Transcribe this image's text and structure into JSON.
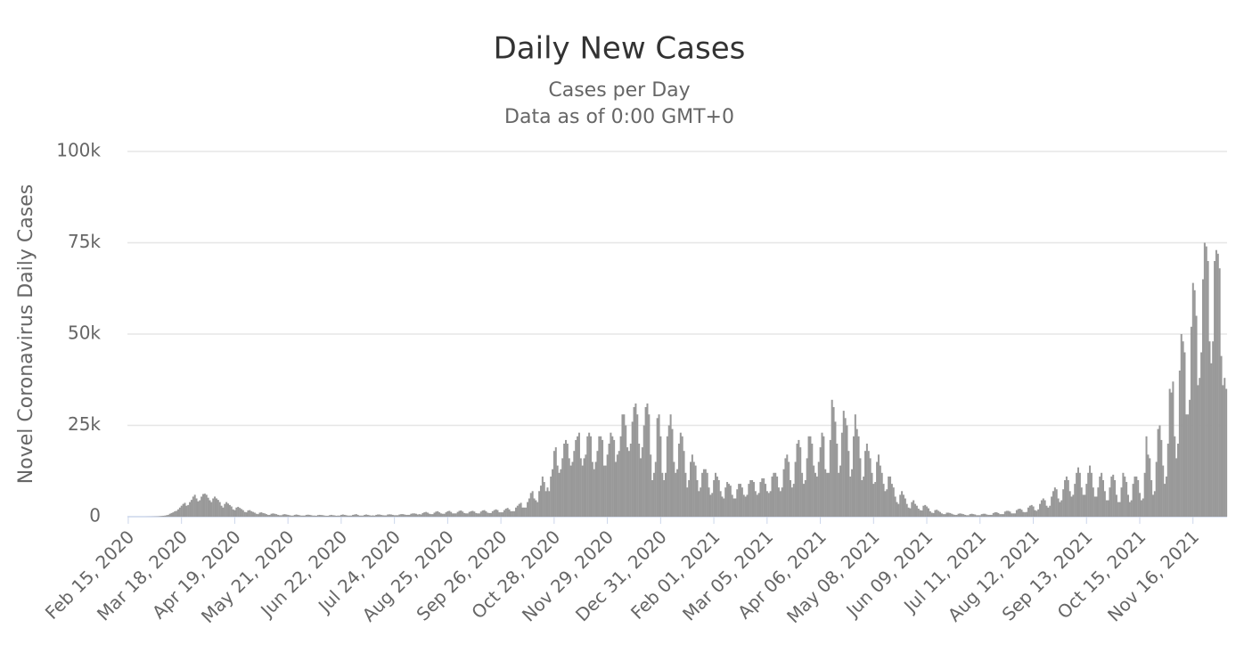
{
  "chart_data": {
    "type": "bar",
    "title": "Daily New Cases",
    "subtitle": [
      "Cases per Day",
      "Data as of 0:00 GMT+0"
    ],
    "y_label": "Novel Coronavirus Daily Cases",
    "color": "#999999",
    "grid": true,
    "ylim": [
      0,
      100000
    ],
    "yticks": [
      0,
      {
        "value": 25000,
        "label": "25k"
      },
      {
        "value": 50000,
        "label": "50k"
      },
      {
        "value": 75000,
        "label": "75k"
      },
      {
        "value": 100000,
        "label": "100k"
      }
    ],
    "categories": [
      "Feb 15, 2020",
      null,
      null,
      null,
      null,
      null,
      null,
      null,
      null,
      null,
      null,
      null,
      null,
      null,
      null,
      null,
      null,
      null,
      null,
      null,
      null,
      null,
      null,
      null,
      null,
      null,
      null,
      null,
      null,
      null,
      null,
      null,
      "Mar 18, 2020",
      null,
      null,
      null,
      null,
      null,
      null,
      null,
      null,
      null,
      null,
      null,
      null,
      null,
      null,
      null,
      null,
      null,
      null,
      null,
      null,
      null,
      null,
      null,
      null,
      null,
      null,
      null,
      null,
      null,
      null,
      null,
      "Apr 19, 2020",
      null,
      null,
      null,
      null,
      null,
      null,
      null,
      null,
      null,
      null,
      null,
      null,
      null,
      null,
      null,
      null,
      null,
      null,
      null,
      null,
      null,
      null,
      null,
      null,
      null,
      null,
      null,
      null,
      null,
      null,
      null,
      "May 21, 2020",
      null,
      null,
      null,
      null,
      null,
      null,
      null,
      null,
      null,
      null,
      null,
      null,
      null,
      null,
      null,
      null,
      null,
      null,
      null,
      null,
      null,
      null,
      null,
      null,
      null,
      null,
      null,
      null,
      null,
      null,
      null,
      "Jun 22, 2020",
      null,
      null,
      null,
      null,
      null,
      null,
      null,
      null,
      null,
      null,
      null,
      null,
      null,
      null,
      null,
      null,
      null,
      null,
      null,
      null,
      null,
      null,
      null,
      null,
      null,
      null,
      null,
      null,
      null,
      null,
      null,
      "Jul 24, 2020",
      null,
      null,
      null,
      null,
      null,
      null,
      null,
      null,
      null,
      null,
      null,
      null,
      null,
      null,
      null,
      null,
      null,
      null,
      null,
      null,
      null,
      null,
      null,
      null,
      null,
      null,
      null,
      null,
      null,
      null,
      null,
      "Aug 25, 2020",
      null,
      null,
      null,
      null,
      null,
      null,
      null,
      null,
      null,
      null,
      null,
      null,
      null,
      null,
      null,
      null,
      null,
      null,
      null,
      null,
      null,
      null,
      null,
      null,
      null,
      null,
      null,
      null,
      null,
      null,
      null,
      "Sep 26, 2020",
      null,
      null,
      null,
      null,
      null,
      null,
      null,
      null,
      null,
      null,
      null,
      null,
      null,
      null,
      null,
      null,
      null,
      null,
      null,
      null,
      null,
      null,
      null,
      null,
      null,
      null,
      null,
      null,
      null,
      null,
      null,
      "Oct 28, 2020",
      null,
      null,
      null,
      null,
      null,
      null,
      null,
      null,
      null,
      null,
      null,
      null,
      null,
      null,
      null,
      null,
      null,
      null,
      null,
      null,
      null,
      null,
      null,
      null,
      null,
      null,
      null,
      null,
      null,
      null,
      null,
      "Nov 29, 2020",
      null,
      null,
      null,
      null,
      null,
      null,
      null,
      null,
      null,
      null,
      null,
      null,
      null,
      null,
      null,
      null,
      null,
      null,
      null,
      null,
      null,
      null,
      null,
      null,
      null,
      null,
      null,
      null,
      null,
      null,
      null,
      "Dec 31, 2020",
      null,
      null,
      null,
      null,
      null,
      null,
      null,
      null,
      null,
      null,
      null,
      null,
      null,
      null,
      null,
      null,
      null,
      null,
      null,
      null,
      null,
      null,
      null,
      null,
      null,
      null,
      null,
      null,
      null,
      null,
      null,
      "Feb 01, 2021",
      null,
      null,
      null,
      null,
      null,
      null,
      null,
      null,
      null,
      null,
      null,
      null,
      null,
      null,
      null,
      null,
      null,
      null,
      null,
      null,
      null,
      null,
      null,
      null,
      null,
      null,
      null,
      null,
      null,
      null,
      null,
      "Mar 05, 2021",
      null,
      null,
      null,
      null,
      null,
      null,
      null,
      null,
      null,
      null,
      null,
      null,
      null,
      null,
      null,
      null,
      null,
      null,
      null,
      null,
      null,
      null,
      null,
      null,
      null,
      null,
      null,
      null,
      null,
      null,
      null,
      "Apr 06, 2021",
      null,
      null,
      null,
      null,
      null,
      null,
      null,
      null,
      null,
      null,
      null,
      null,
      null,
      null,
      null,
      null,
      null,
      null,
      null,
      null,
      null,
      null,
      null,
      null,
      null,
      null,
      null,
      null,
      null,
      null,
      null,
      "May 08, 2021",
      null,
      null,
      null,
      null,
      null,
      null,
      null,
      null,
      null,
      null,
      null,
      null,
      null,
      null,
      null,
      null,
      null,
      null,
      null,
      null,
      null,
      null,
      null,
      null,
      null,
      null,
      null,
      null,
      null,
      null,
      null,
      "Jun 09, 2021",
      null,
      null,
      null,
      null,
      null,
      null,
      null,
      null,
      null,
      null,
      null,
      null,
      null,
      null,
      null,
      null,
      null,
      null,
      null,
      null,
      null,
      null,
      null,
      null,
      null,
      null,
      null,
      null,
      null,
      null,
      null,
      "Jul 11, 2021",
      null,
      null,
      null,
      null,
      null,
      null,
      null,
      null,
      null,
      null,
      null,
      null,
      null,
      null,
      null,
      null,
      null,
      null,
      null,
      null,
      null,
      null,
      null,
      null,
      null,
      null,
      null,
      null,
      null,
      null,
      null,
      "Aug 12, 2021",
      null,
      null,
      null,
      null,
      null,
      null,
      null,
      null,
      null,
      null,
      null,
      null,
      null,
      null,
      null,
      null,
      null,
      null,
      null,
      null,
      null,
      null,
      null,
      null,
      null,
      null,
      null,
      null,
      null,
      null,
      null,
      "Sep 13, 2021",
      null,
      null,
      null,
      null,
      null,
      null,
      null,
      null,
      null,
      null,
      null,
      null,
      null,
      null,
      null,
      null,
      null,
      null,
      null,
      null,
      null,
      null,
      null,
      null,
      null,
      null,
      null,
      null,
      null,
      null,
      null,
      "Oct 15, 2021",
      null,
      null,
      null,
      null,
      null,
      null,
      null,
      null,
      null,
      null,
      null,
      null,
      null,
      null,
      null,
      null,
      null,
      null,
      null,
      null,
      null,
      null,
      null,
      null,
      null,
      null,
      null,
      null,
      null,
      null,
      null,
      "Nov 16, 2021",
      null,
      null,
      null,
      null,
      null,
      null,
      null,
      null,
      null,
      null,
      null,
      null,
      null,
      null,
      null,
      null,
      null,
      null,
      null,
      null
    ],
    "values": [
      0,
      0,
      0,
      0,
      0,
      0,
      0,
      0,
      0,
      0,
      0,
      10,
      20,
      20,
      30,
      40,
      60,
      80,
      100,
      150,
      200,
      250,
      300,
      400,
      500,
      800,
      1000,
      1200,
      1500,
      1600,
      2000,
      2500,
      3000,
      3500,
      3800,
      3000,
      3200,
      4000,
      4600,
      5500,
      6000,
      5000,
      4200,
      4500,
      5500,
      6200,
      6300,
      6000,
      5200,
      4500,
      4000,
      5000,
      5500,
      5000,
      4600,
      4000,
      3000,
      2500,
      3500,
      4000,
      3600,
      3200,
      2800,
      2000,
      1800,
      2500,
      2700,
      2400,
      2100,
      1800,
      1300,
      1200,
      1700,
      1800,
      1500,
      1300,
      1100,
      800,
      700,
      1100,
      1200,
      1000,
      900,
      700,
      500,
      500,
      800,
      900,
      800,
      700,
      500,
      400,
      400,
      600,
      700,
      600,
      500,
      400,
      300,
      300,
      500,
      600,
      500,
      400,
      300,
      300,
      300,
      500,
      550,
      500,
      400,
      300,
      300,
      250,
      450,
      500,
      450,
      400,
      300,
      250,
      250,
      400,
      500,
      400,
      350,
      250,
      300,
      300,
      500,
      600,
      500,
      400,
      300,
      300,
      300,
      500,
      600,
      700,
      500,
      300,
      300,
      300,
      500,
      600,
      500,
      400,
      300,
      350,
      300,
      500,
      600,
      600,
      500,
      400,
      350,
      350,
      600,
      650,
      600,
      500,
      400,
      400,
      400,
      600,
      700,
      700,
      600,
      500,
      500,
      500,
      800,
      900,
      900,
      800,
      600,
      700,
      600,
      1000,
      1200,
      1300,
      1100,
      800,
      700,
      700,
      1100,
      1400,
      1500,
      1200,
      900,
      800,
      800,
      1200,
      1500,
      1600,
      1300,
      900,
      900,
      900,
      1300,
      1600,
      1700,
      1400,
      1000,
      900,
      900,
      1300,
      1500,
      1600,
      1400,
      1000,
      900,
      900,
      1400,
      1700,
      1800,
      1500,
      1100,
      1000,
      1000,
      1500,
      1800,
      2000,
      1800,
      1200,
      1200,
      1200,
      1800,
      2200,
      2400,
      2000,
      1500,
      1500,
      1500,
      2500,
      3000,
      3500,
      3800,
      2500,
      2500,
      2500,
      4000,
      5000,
      6500,
      7000,
      5000,
      4500,
      4000,
      7000,
      8500,
      11000,
      9500,
      7000,
      8000,
      7000,
      11000,
      13000,
      18000,
      19000,
      14000,
      12000,
      13000,
      16000,
      20000,
      21000,
      20000,
      16000,
      14000,
      15000,
      18000,
      21000,
      22000,
      23000,
      16000,
      14000,
      16000,
      17000,
      22000,
      23000,
      22000,
      15000,
      13000,
      15000,
      18000,
      22000,
      22000,
      21000,
      14000,
      14000,
      17000,
      20000,
      23000,
      22000,
      21000,
      15000,
      17000,
      18000,
      22000,
      28000,
      28000,
      25000,
      19000,
      18000,
      20000,
      26000,
      30000,
      31000,
      28000,
      20000,
      16000,
      19000,
      25000,
      30000,
      31000,
      28000,
      17000,
      10000,
      12000,
      15000,
      27000,
      28000,
      22000,
      12000,
      10000,
      12000,
      22000,
      25000,
      28000,
      24000,
      15000,
      12000,
      13000,
      20000,
      23000,
      22000,
      18000,
      12000,
      8000,
      10000,
      15000,
      17000,
      15000,
      14000,
      10000,
      7000,
      8000,
      12000,
      13000,
      13000,
      12000,
      8000,
      6000,
      6500,
      10000,
      12000,
      11000,
      10000,
      7000,
      5500,
      5000,
      8000,
      9500,
      9000,
      8500,
      6000,
      5000,
      5000,
      7500,
      9000,
      9000,
      8000,
      6000,
      5500,
      6000,
      9000,
      10000,
      10000,
      9500,
      7000,
      6000,
      6500,
      9500,
      10500,
      10500,
      9000,
      7000,
      6500,
      7000,
      11000,
      12000,
      12000,
      11000,
      8000,
      7000,
      8000,
      13000,
      16000,
      17000,
      15000,
      10000,
      8000,
      9000,
      15000,
      20000,
      21000,
      19000,
      12000,
      9000,
      10000,
      16000,
      22000,
      22000,
      20000,
      14000,
      12000,
      11000,
      15000,
      19000,
      23000,
      22000,
      13000,
      12000,
      12000,
      21000,
      32000,
      30000,
      26000,
      20000,
      12000,
      14000,
      23000,
      29000,
      27000,
      25000,
      18000,
      11000,
      13000,
      22000,
      28000,
      24000,
      22000,
      16000,
      10000,
      11000,
      18000,
      20000,
      18000,
      16000,
      12000,
      9000,
      9500,
      15000,
      17000,
      14000,
      12000,
      9000,
      7000,
      7500,
      11000,
      11000,
      9000,
      8000,
      5500,
      4000,
      3500,
      6000,
      7000,
      6000,
      5000,
      3500,
      2500,
      2300,
      4000,
      4500,
      3500,
      3000,
      2200,
      1800,
      1700,
      3000,
      3200,
      2800,
      2300,
      1500,
      1100,
      1000,
      1800,
      1900,
      1600,
      1300,
      900,
      700,
      700,
      1100,
      1100,
      1000,
      800,
      600,
      500,
      500,
      800,
      900,
      800,
      700,
      500,
      400,
      400,
      700,
      800,
      700,
      600,
      400,
      400,
      400,
      700,
      800,
      800,
      600,
      500,
      500,
      500,
      1000,
      1200,
      1200,
      1000,
      700,
      700,
      700,
      1400,
      1600,
      1600,
      1400,
      900,
      900,
      900,
      1800,
      2100,
      2200,
      1900,
      1300,
      1200,
      1300,
      2500,
      3000,
      3200,
      2800,
      1800,
      1600,
      2000,
      3500,
      4500,
      5000,
      4500,
      3000,
      2500,
      3000,
      5500,
      7000,
      8000,
      7500,
      5000,
      4000,
      4500,
      7500,
      10000,
      11000,
      10000,
      7000,
      5500,
      6000,
      9000,
      12000,
      13500,
      12000,
      8000,
      6000,
      6000,
      9000,
      12000,
      14000,
      12000,
      8000,
      5500,
      5500,
      8000,
      11000,
      12000,
      10000,
      7000,
      4500,
      4500,
      8000,
      11000,
      11500,
      10000,
      6000,
      4000,
      4000,
      8000,
      12000,
      11000,
      9500,
      6000,
      4000,
      4500,
      9000,
      11000,
      11000,
      10000,
      6500,
      4500,
      5000,
      12000,
      22000,
      17000,
      16000,
      10000,
      6000,
      7000,
      15000,
      24000,
      25000,
      21000,
      14000,
      9000,
      11000,
      20000,
      35000,
      34000,
      37000,
      22000,
      16000,
      20000,
      40000,
      50000,
      48000,
      45000,
      28000,
      28000,
      32000,
      52000,
      64000,
      62000,
      55000,
      36000,
      38000,
      45000,
      65000,
      75000,
      74000,
      70000,
      48000,
      42000,
      48000,
      70000,
      73000,
      72000,
      68000,
      44000,
      36000,
      38000,
      35000
    ]
  }
}
